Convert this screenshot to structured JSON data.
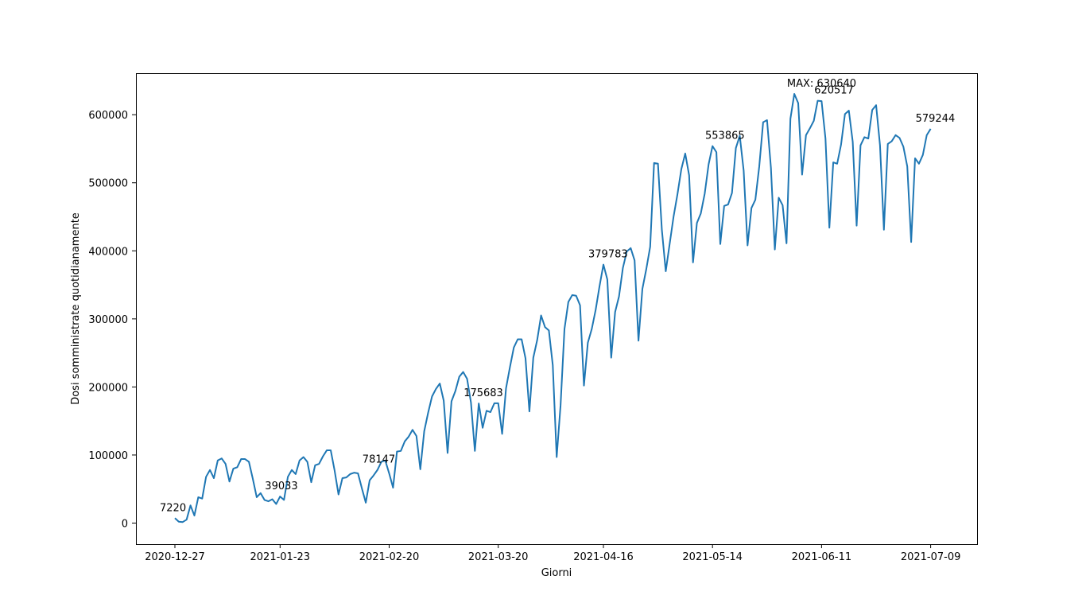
{
  "chart_data": {
    "type": "line",
    "xlabel": "Giorni",
    "ylabel": "Dosi somministrate quotidianamente",
    "x_start": "2020-12-27",
    "x_end": "2021-07-10",
    "x_tick_labels": [
      "2020-12-27",
      "2021-01-23",
      "2021-02-20",
      "2021-03-20",
      "2021-04-16",
      "2021-05-14",
      "2021-06-11",
      "2021-07-09"
    ],
    "ylim": [
      -31000,
      661000
    ],
    "y_ticks": [
      0,
      100000,
      200000,
      300000,
      400000,
      500000,
      600000
    ],
    "y_tick_labels": [
      "0",
      "100000",
      "200000",
      "300000",
      "400000",
      "500000",
      "600000"
    ],
    "line_color": "#1f77b4",
    "grid": false,
    "series": [
      {
        "values": [
          7220,
          2000,
          1500,
          5000,
          26000,
          11000,
          38000,
          36000,
          68000,
          78000,
          66000,
          92000,
          95000,
          87000,
          61000,
          80000,
          82000,
          94000,
          94000,
          90000,
          65000,
          38000,
          44000,
          34000,
          32000,
          35000,
          28000,
          39033,
          34000,
          68000,
          78000,
          72000,
          92000,
          97000,
          90000,
          60000,
          85000,
          87000,
          98000,
          107000,
          107000,
          77000,
          42000,
          66000,
          67000,
          72000,
          74000,
          73000,
          51000,
          30000,
          63000,
          70000,
          78147,
          90000,
          92000,
          73000,
          52000,
          105000,
          106000,
          120000,
          127000,
          137000,
          128000,
          79000,
          135000,
          162000,
          186000,
          197000,
          205000,
          180000,
          103000,
          179000,
          194000,
          215000,
          222000,
          212000,
          177000,
          106000,
          175683,
          140000,
          165000,
          163000,
          176000,
          176000,
          131000,
          198000,
          229000,
          258000,
          270000,
          270000,
          242000,
          164000,
          243000,
          269000,
          305000,
          288000,
          283000,
          232000,
          97000,
          173000,
          285000,
          325000,
          335000,
          334000,
          320000,
          202000,
          265000,
          285000,
          313000,
          348000,
          379783,
          358000,
          243000,
          310000,
          333000,
          375000,
          399000,
          404000,
          386000,
          268000,
          344000,
          373000,
          406000,
          529000,
          528000,
          431000,
          370000,
          410000,
          450000,
          483000,
          520000,
          543000,
          511000,
          383000,
          441000,
          455000,
          484000,
          527000,
          553865,
          545000,
          410000,
          466000,
          468000,
          485000,
          551000,
          569000,
          518000,
          408000,
          463000,
          475000,
          524000,
          589000,
          592000,
          522000,
          402000,
          478000,
          467000,
          411000,
          594000,
          630640,
          617000,
          512000,
          570000,
          580000,
          591000,
          620517,
          620000,
          565000,
          434000,
          530000,
          528000,
          556000,
          601000,
          606000,
          560000,
          437000,
          555000,
          567000,
          565000,
          607000,
          614000,
          555000,
          431000,
          557000,
          561000,
          570000,
          566000,
          553000,
          524000,
          413000,
          536000,
          528000,
          541000,
          570000,
          579244
        ]
      }
    ],
    "annotations": [
      {
        "text": "7220",
        "x": 0,
        "y": 7220
      },
      {
        "text": "39033",
        "x": 27,
        "y": 39033
      },
      {
        "text": "78147",
        "x": 52,
        "y": 78147
      },
      {
        "text": "175683",
        "x": 78,
        "y": 175683
      },
      {
        "text": "379783",
        "x": 110,
        "y": 379783
      },
      {
        "text": "553865",
        "x": 140,
        "y": 553865
      },
      {
        "text": "MAX: 630640",
        "x": 161,
        "y": 630640
      },
      {
        "text": "620517",
        "x": 168,
        "y": 620517
      },
      {
        "text": "579244",
        "x": 194,
        "y": 579244
      }
    ]
  }
}
